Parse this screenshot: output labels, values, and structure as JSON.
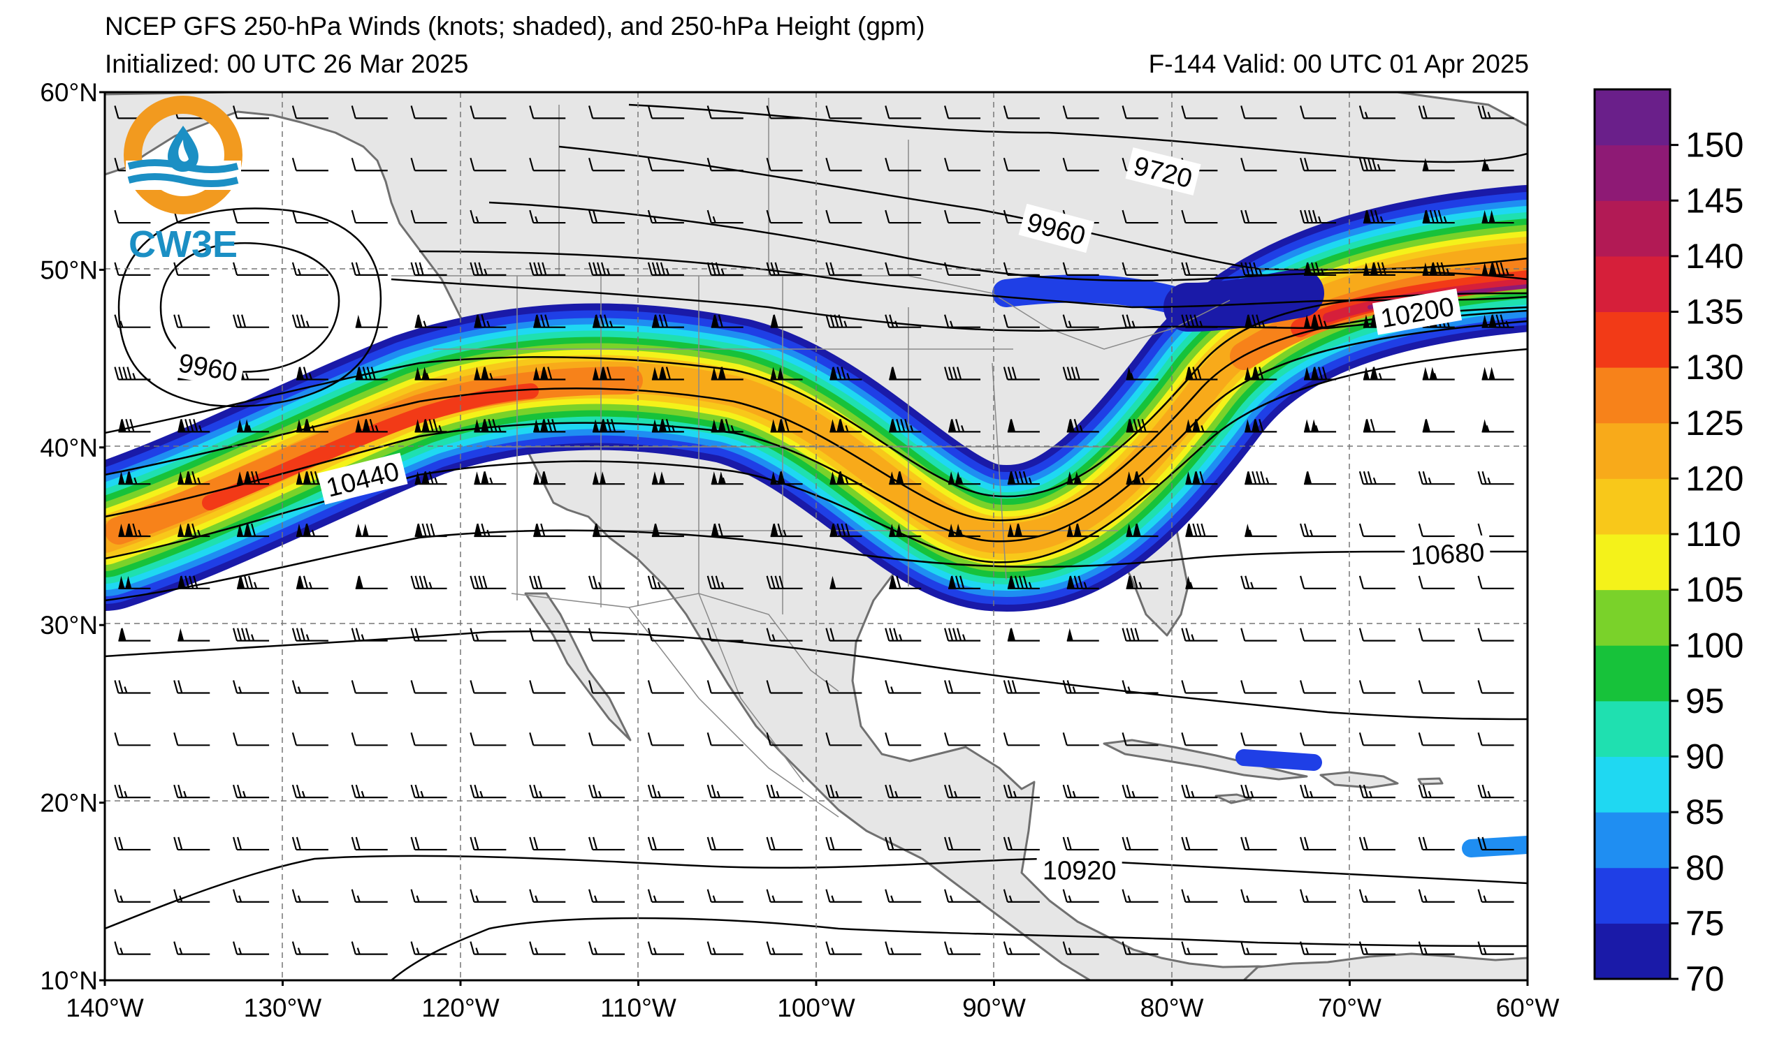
{
  "header": {
    "title": "NCEP GFS 250-hPa Winds (knots; shaded), and 250-hPa Height (gpm)",
    "initialized": "Initialized: 00 UTC 26 Mar 2025",
    "valid": "F-144  Valid: 00 UTC 01 Apr 2025"
  },
  "logo": {
    "text": "CW3E",
    "accent": "#f29a1f",
    "brand": "#1b8fc4"
  },
  "map": {
    "lat_labels": [
      "60°N",
      "50°N",
      "40°N",
      "30°N",
      "20°N",
      "10°N"
    ],
    "lon_labels": [
      "140°W",
      "130°W",
      "120°W",
      "110°W",
      "100°W",
      "90°W",
      "80°W",
      "70°W",
      "60°W"
    ],
    "lat_values": [
      60,
      50,
      40,
      30,
      20,
      10
    ],
    "lon_values": [
      -140,
      -130,
      -120,
      -110,
      -100,
      -90,
      -80,
      -70,
      -60
    ],
    "extent": {
      "lon": [
        -140,
        -60
      ],
      "lat": [
        10,
        60
      ]
    },
    "contour_labels": [
      {
        "text": "9720",
        "lon": -80.5,
        "lat": 55.5,
        "angle": 14
      },
      {
        "text": "9960",
        "lon": -86.5,
        "lat": 52.3,
        "angle": 15
      },
      {
        "text": "9960",
        "lon": -134.2,
        "lat": 44.5,
        "angle": 10
      },
      {
        "text": "10200",
        "lon": -66.2,
        "lat": 47.6,
        "angle": -10
      },
      {
        "text": "10440",
        "lon": -125.5,
        "lat": 38.2,
        "angle": -14
      },
      {
        "text": "10680",
        "lon": -64.5,
        "lat": 34.0,
        "angle": -3
      },
      {
        "text": "10920",
        "lon": -85.2,
        "lat": 16.2,
        "angle": 0
      }
    ],
    "colors": {
      "land": "#e6e6e6",
      "ocean": "#ffffff",
      "coast": "#707070",
      "grid": "#777777"
    }
  },
  "colorbar": {
    "levels": [
      "70",
      "75",
      "80",
      "85",
      "90",
      "95",
      "100",
      "105",
      "110",
      "120",
      "125",
      "130",
      "135",
      "140",
      "145",
      "150"
    ],
    "colors": [
      "#1a1aa8",
      "#1f3fe6",
      "#1f8ef2",
      "#1fd8f2",
      "#1fe0b0",
      "#17c23a",
      "#7ad22a",
      "#f4f21a",
      "#f8c81a",
      "#f8aa1a",
      "#f7821a",
      "#f23a17",
      "#d61f3a",
      "#b21a55",
      "#8e1a75",
      "#6a1f8a"
    ]
  },
  "chart_data": {
    "type": "heatmap",
    "variable": "250-hPa wind speed (knots)",
    "jet_axis": [
      {
        "lon": -140,
        "lat": 35.5,
        "wspd": 125
      },
      {
        "lon": -130,
        "lat": 37.5,
        "wspd": 132
      },
      {
        "lon": -120,
        "lat": 40.5,
        "wspd": 135
      },
      {
        "lon": -110,
        "lat": 42.0,
        "wspd": 128
      },
      {
        "lon": -100,
        "lat": 40.0,
        "wspd": 122
      },
      {
        "lon": -94,
        "lat": 37.0,
        "wspd": 110
      },
      {
        "lon": -88,
        "lat": 35.0,
        "wspd": 108
      },
      {
        "lon": -80,
        "lat": 37.5,
        "wspd": 118
      },
      {
        "lon": -74,
        "lat": 43.0,
        "wspd": 125
      },
      {
        "lon": -68,
        "lat": 47.5,
        "wspd": 142
      },
      {
        "lon": -60,
        "lat": 48.5,
        "wspd": 138
      }
    ]
  }
}
